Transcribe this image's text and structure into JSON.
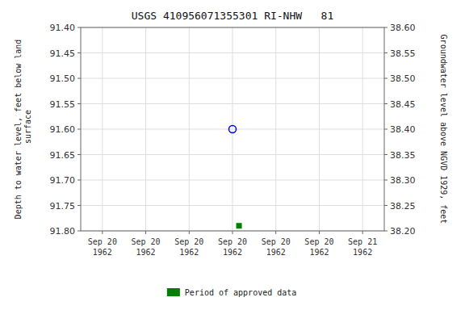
{
  "chart_data": {
    "type": "scatter",
    "title": "USGS 410956071355301 RI-NHW   81",
    "ylabel": "Depth to water level, feet below land\n surface",
    "y2label": "Groundwater level above NGVD 1929, feet",
    "categories": [
      "Sep 20\n1962",
      "Sep 20\n1962",
      "Sep 20\n1962",
      "Sep 20\n1962",
      "Sep 20\n1962",
      "Sep 20\n1962",
      "Sep 21\n1962"
    ],
    "series": [
      {
        "color": "#0000ff",
        "marker": "circle",
        "values": [
          null,
          null,
          null,
          91.6,
          null,
          null,
          null
        ]
      },
      {
        "name": "Period of approved data",
        "color": "#008000",
        "marker": "square",
        "values": [
          null,
          null,
          null,
          91.79,
          null,
          null,
          null
        ]
      }
    ],
    "ylim": [
      91.8,
      91.4
    ],
    "yticks": [
      {
        "value": 91.4,
        "label": "91.40"
      },
      91.45,
      {
        "value": 91.5,
        "label": "91.50"
      },
      91.55,
      {
        "value": 91.6,
        "label": "91.60"
      },
      91.65,
      {
        "value": 91.7,
        "label": "91.70"
      },
      91.75,
      {
        "value": 91.8,
        "label": "91.80"
      }
    ],
    "y2lim": [
      38.2,
      38.6
    ],
    "y2ticks": [
      {
        "value": 38.2,
        "label": "38.20"
      },
      38.25,
      {
        "value": 38.3,
        "label": "38.30"
      },
      38.35,
      {
        "value": 38.4,
        "label": "38.40"
      },
      38.45,
      {
        "value": 38.5,
        "label": "38.50"
      },
      38.55,
      {
        "value": 38.6,
        "label": "38.60"
      }
    ],
    "grid": true,
    "legend": "bottom"
  }
}
